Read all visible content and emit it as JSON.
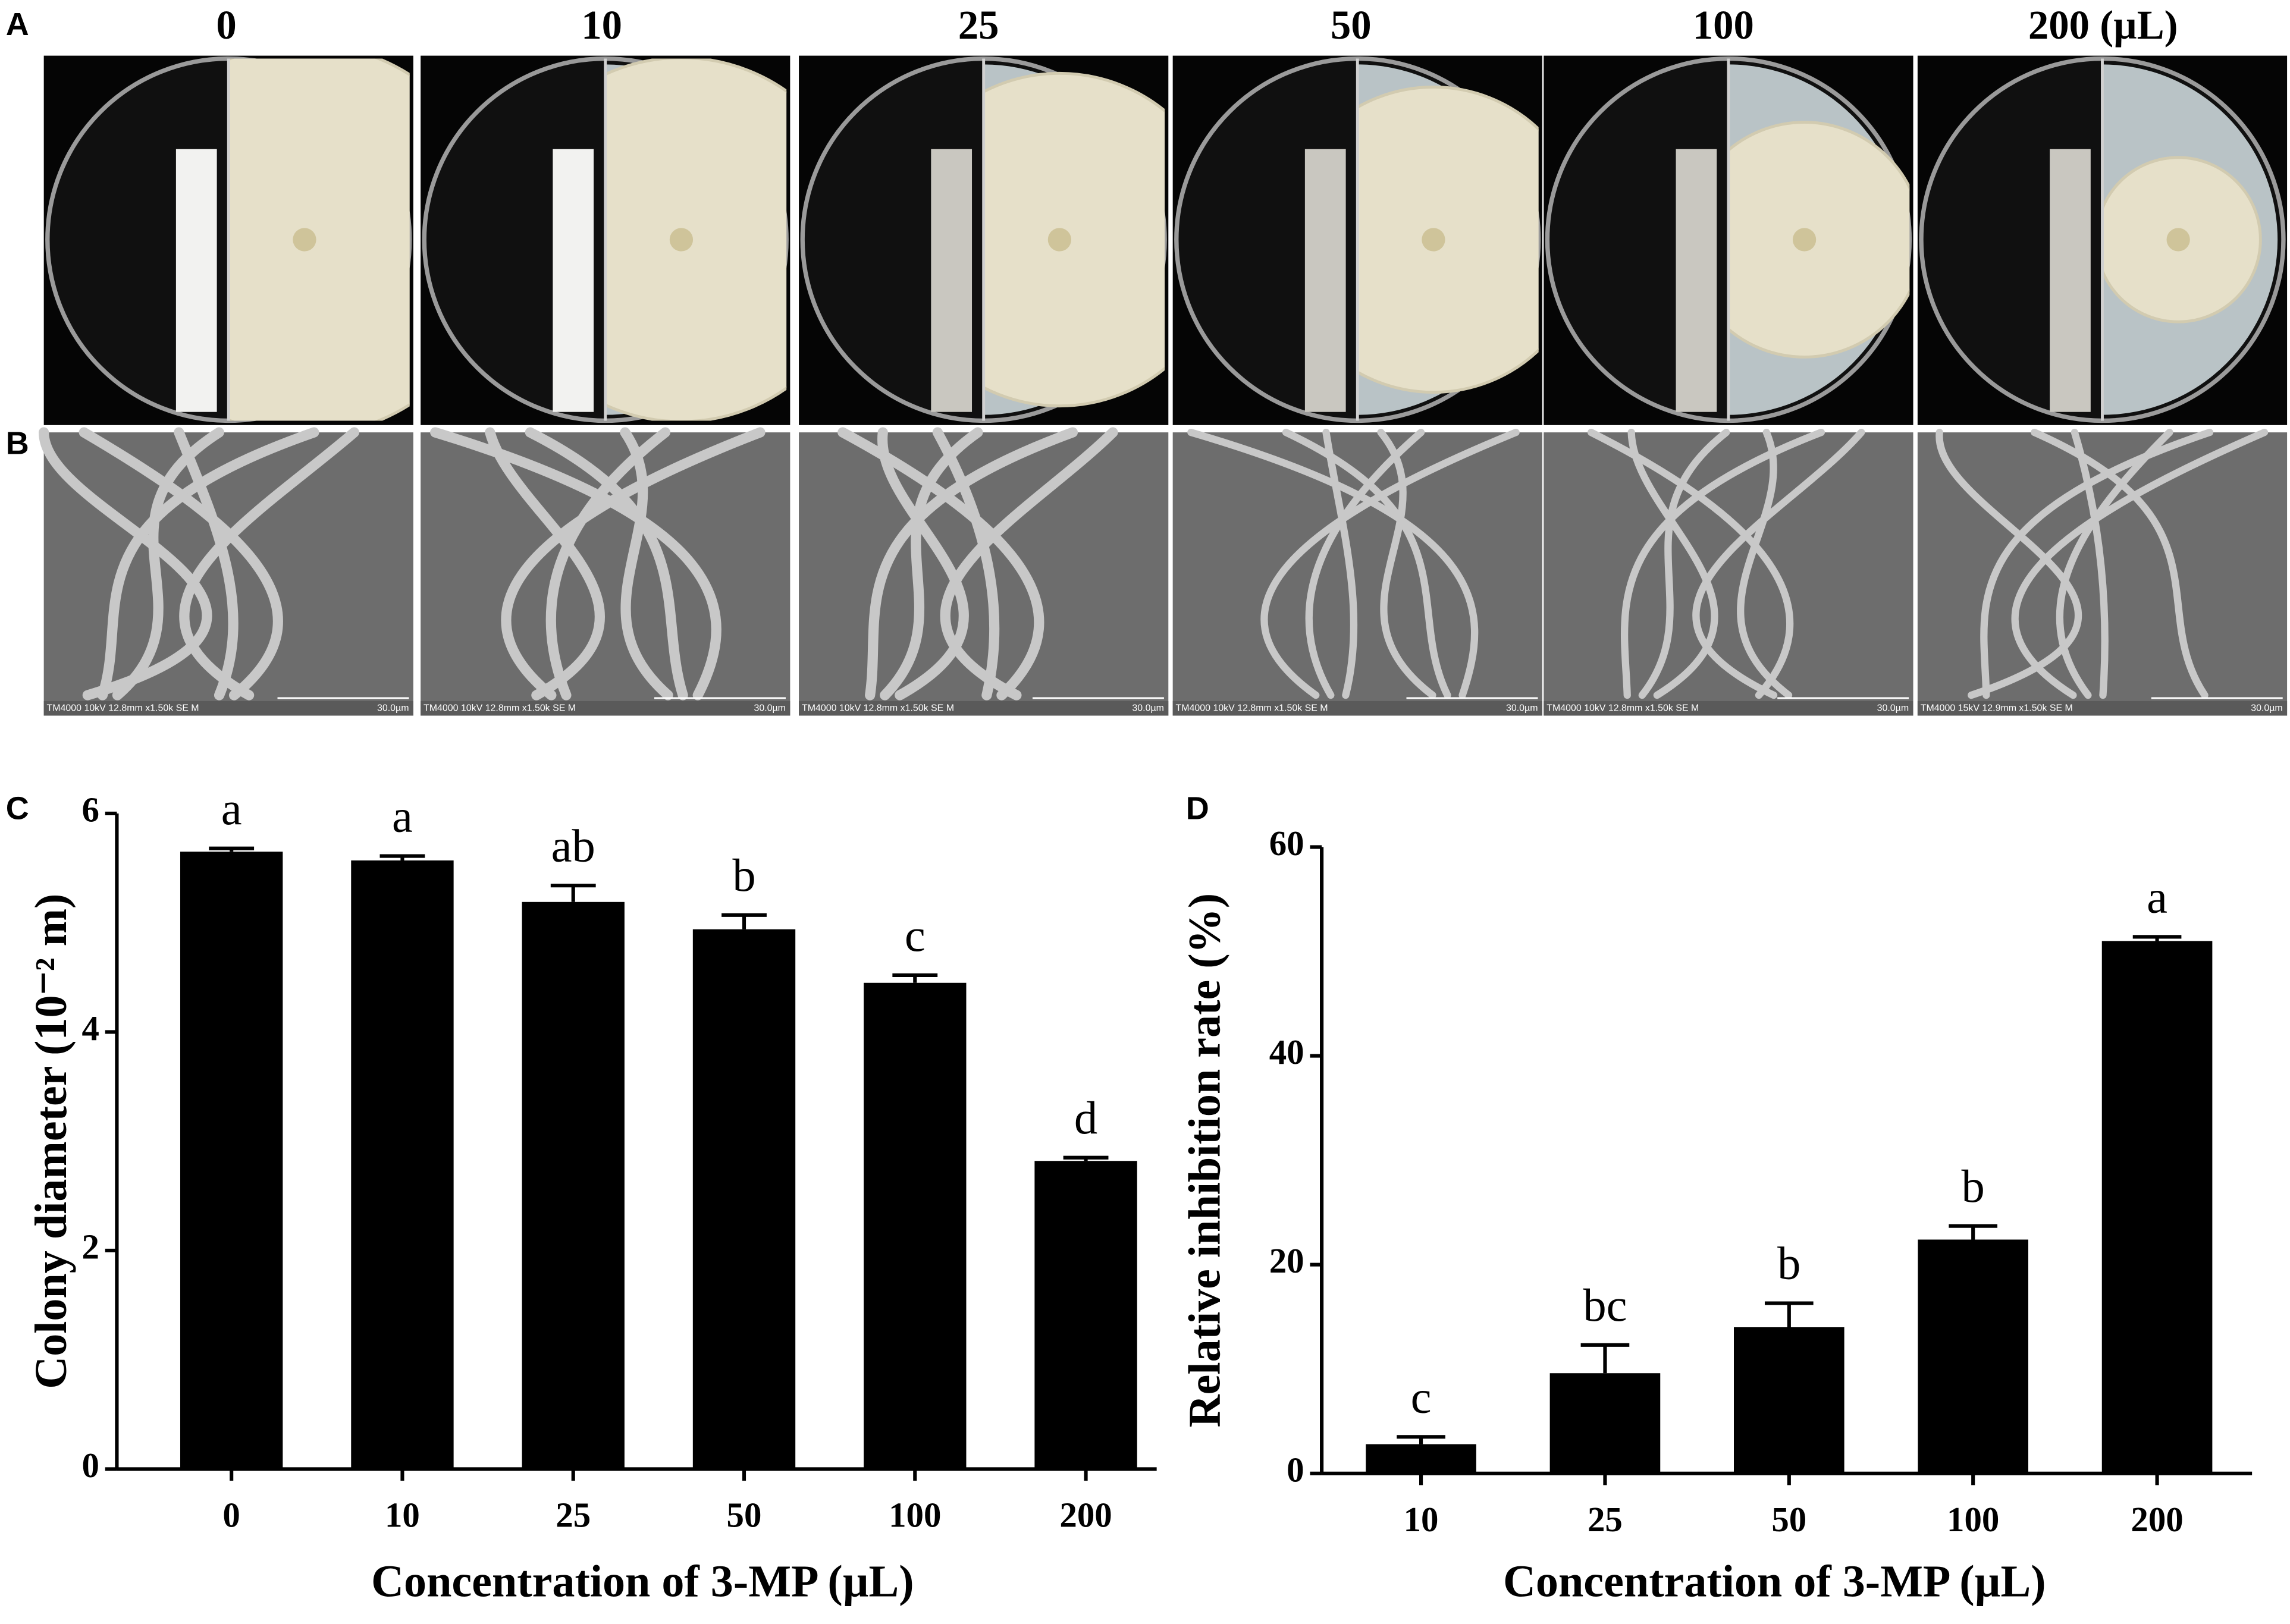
{
  "panel_labels": [
    "A",
    "B",
    "C",
    "D"
  ],
  "photo_row": {
    "labels": [
      "0",
      "10",
      "25",
      "50",
      "100",
      "200 (µL)"
    ]
  },
  "sem_row": {
    "captions": [
      "TM4000 10kV 12.8mm x1.50k SE M",
      "TM4000 10kV 12.8mm x1.50k SE M",
      "TM4000 10kV 12.8mm x1.50k SE M",
      "TM4000 10kV 12.8mm x1.50k SE M",
      "TM4000 10kV 12.8mm x1.50k SE M",
      "TM4000 15kV 12.9mm x1.50k SE M"
    ],
    "scales": [
      "30.0µm",
      "30.0µm",
      "30.0µm",
      "30.0µm",
      "30.0µm",
      "30.0µm"
    ]
  },
  "chart_data": [
    {
      "type": "bar",
      "x_label": "Concentration of 3-MP (µL)",
      "y_label": "Colony diameter (10⁻² m)",
      "categories": [
        "0",
        "10",
        "25",
        "50",
        "100",
        "200"
      ],
      "values": [
        5.65,
        5.57,
        5.19,
        4.94,
        4.45,
        2.82
      ],
      "errors": [
        0.03,
        0.04,
        0.15,
        0.13,
        0.07,
        0.03
      ],
      "letters": [
        "a",
        "a",
        "ab",
        "b",
        "c",
        "d"
      ],
      "color": "#000000",
      "ylim": [
        0,
        6
      ],
      "yticks": [
        0,
        2,
        4,
        6
      ]
    },
    {
      "type": "bar",
      "x_label": "Concentration of 3-MP (µL)",
      "y_label": "Relative inhibition rate (%)",
      "categories": [
        "10",
        "25",
        "50",
        "100",
        "200"
      ],
      "values": [
        2.8,
        9.6,
        14.0,
        22.4,
        51.0
      ],
      "errors": [
        0.7,
        2.7,
        2.3,
        1.3,
        0.4
      ],
      "letters": [
        "c",
        "bc",
        "b",
        "b",
        "a"
      ],
      "color": "#000000",
      "ylim": [
        0,
        60
      ],
      "yticks": [
        0,
        20,
        40,
        60
      ]
    }
  ]
}
